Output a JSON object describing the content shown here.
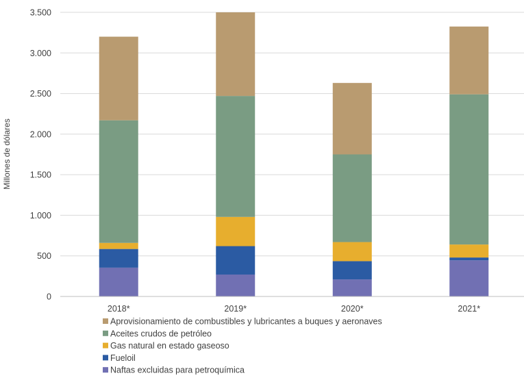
{
  "chart_data": {
    "type": "bar",
    "stacked": true,
    "categories": [
      "2018*",
      "2019*",
      "2020*",
      "2021*"
    ],
    "ylabel": "Millones de dólares",
    "xlabel": "",
    "title": "",
    "ylim": [
      0,
      3500
    ],
    "yticks": [
      0,
      500,
      1000,
      1500,
      2000,
      2500,
      3000,
      3500
    ],
    "ytick_labels": [
      "0",
      "500",
      "1.000",
      "1.500",
      "2.000",
      "2.500",
      "3.000",
      "3.500"
    ],
    "grid": true,
    "legend_position": "bottom",
    "series": [
      {
        "name": "Naftas excluidas para petroquímica",
        "color": "#7170b3",
        "values": [
          355,
          270,
          210,
          445
        ]
      },
      {
        "name": "Fueloil",
        "color": "#2b5ba3",
        "values": [
          230,
          350,
          225,
          35
        ]
      },
      {
        "name": "Gas natural en estado gaseoso",
        "color": "#e7ae2e",
        "values": [
          75,
          360,
          235,
          160
        ]
      },
      {
        "name": "Aceites crudos de petróleo",
        "color": "#7a9c83",
        "values": [
          1510,
          1490,
          1080,
          1850
        ]
      },
      {
        "name": "Aprovisionamiento de combustibles y lubricantes a buques y aeronaves",
        "color": "#b99b70",
        "values": [
          1030,
          1030,
          880,
          835
        ]
      }
    ]
  }
}
